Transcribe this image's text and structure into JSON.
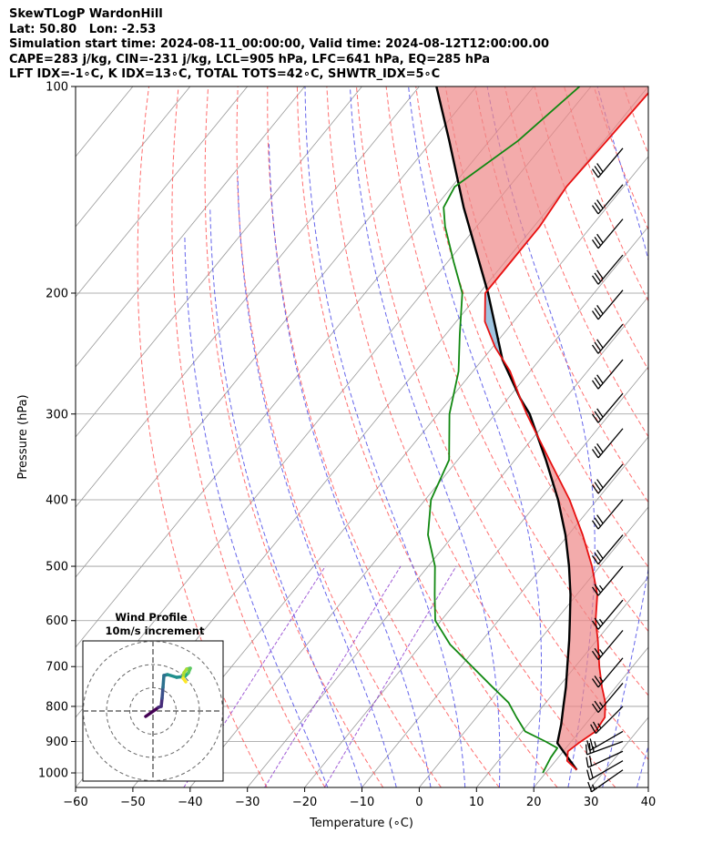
{
  "header": {
    "line1": "SkewTLogP WardonHill",
    "line2": "Lat: 50.80   Lon: -2.53",
    "line3": "Simulation start time: 2024-08-11_00:00:00, Valid time: 2024-08-12T12:00:00.00",
    "line4": "CAPE=283 j/kg, CIN=-231 j/kg, LCL=905 hPa, LFC=641 hPa, EQ=285 hPa",
    "line5": "LFT IDX=-1∘C, K IDX=13∘C, TOTAL TOTS=42∘C, SHWTR_IDX=5∘C"
  },
  "chart_data": {
    "type": "skewt-logp",
    "xlabel": "Temperature (∘C)",
    "ylabel": "Pressure (hPa)",
    "xlim": [
      -60,
      40
    ],
    "ylim": [
      1050,
      100
    ],
    "x_ticks": [
      -60,
      -50,
      -40,
      -30,
      -20,
      -10,
      0,
      10,
      20,
      30,
      40
    ],
    "x_tick_labels": [
      "−60",
      "−50",
      "−40",
      "−30",
      "−20",
      "−10",
      "0",
      "10",
      "20",
      "30",
      "40"
    ],
    "y_ticks": [
      1000,
      900,
      800,
      700,
      600,
      500,
      400,
      300,
      200,
      100
    ],
    "y_tick_labels": [
      "1000",
      "900",
      "800",
      "700",
      "600",
      "500",
      "400",
      "300",
      "200",
      "100"
    ],
    "grid": true,
    "colors": {
      "temperature": "#e81010",
      "dewpoint": "#118811",
      "parcel": "#000000",
      "cape_fill": "#7fb0d6",
      "cin_fill": "#ee8888",
      "dry_adiabat": "#ff5555",
      "moist_adiabat": "#4a4ae8",
      "mixing_ratio": "#8833cc",
      "isotherm": "#999999"
    },
    "temperature_profile": [
      {
        "p": 990,
        "t": 25.0
      },
      {
        "p": 960,
        "t": 22.0
      },
      {
        "p": 930,
        "t": 20.8
      },
      {
        "p": 905,
        "t": 21.5
      },
      {
        "p": 870,
        "t": 22.8
      },
      {
        "p": 830,
        "t": 22.4
      },
      {
        "p": 790,
        "t": 20.4
      },
      {
        "p": 750,
        "t": 17.6
      },
      {
        "p": 700,
        "t": 14.2
      },
      {
        "p": 641,
        "t": 10.2
      },
      {
        "p": 600,
        "t": 7.0
      },
      {
        "p": 550,
        "t": 3.6
      },
      {
        "p": 500,
        "t": -1.4
      },
      {
        "p": 450,
        "t": -7.5
      },
      {
        "p": 400,
        "t": -14.8
      },
      {
        "p": 350,
        "t": -24.0
      },
      {
        "p": 300,
        "t": -34.5
      },
      {
        "p": 285,
        "t": -37.8
      },
      {
        "p": 260,
        "t": -43.5
      },
      {
        "p": 240,
        "t": -49.5
      },
      {
        "p": 220,
        "t": -55.0
      },
      {
        "p": 200,
        "t": -59.0
      },
      {
        "p": 180,
        "t": -59.0
      },
      {
        "p": 160,
        "t": -59.0
      },
      {
        "p": 140,
        "t": -60.0
      },
      {
        "p": 120,
        "t": -59.5
      },
      {
        "p": 100,
        "t": -59.0
      }
    ],
    "dewpoint_profile": [
      {
        "p": 1000,
        "t": 19.5
      },
      {
        "p": 950,
        "t": 18.7
      },
      {
        "p": 920,
        "t": 18.5
      },
      {
        "p": 900,
        "t": 15.5
      },
      {
        "p": 870,
        "t": 10.5
      },
      {
        "p": 830,
        "t": 7.0
      },
      {
        "p": 790,
        "t": 3.5
      },
      {
        "p": 750,
        "t": -1.5
      },
      {
        "p": 700,
        "t": -8.0
      },
      {
        "p": 650,
        "t": -15.0
      },
      {
        "p": 600,
        "t": -21.0
      },
      {
        "p": 550,
        "t": -24.8
      },
      {
        "p": 500,
        "t": -28.8
      },
      {
        "p": 450,
        "t": -34.5
      },
      {
        "p": 400,
        "t": -39.0
      },
      {
        "p": 350,
        "t": -41.5
      },
      {
        "p": 300,
        "t": -48.0
      },
      {
        "p": 260,
        "t": -52.5
      },
      {
        "p": 230,
        "t": -57.5
      },
      {
        "p": 200,
        "t": -63.0
      },
      {
        "p": 180,
        "t": -69.0
      },
      {
        "p": 160,
        "t": -75.5
      },
      {
        "p": 150,
        "t": -78.5
      },
      {
        "p": 140,
        "t": -79.5
      },
      {
        "p": 120,
        "t": -75.0
      },
      {
        "p": 100,
        "t": -72.0
      }
    ],
    "parcel_profile": [
      {
        "p": 990,
        "t": 25.0
      },
      {
        "p": 905,
        "t": 17.8
      },
      {
        "p": 850,
        "t": 15.8
      },
      {
        "p": 800,
        "t": 13.6
      },
      {
        "p": 750,
        "t": 11.3
      },
      {
        "p": 700,
        "t": 8.6
      },
      {
        "p": 641,
        "t": 5.2
      },
      {
        "p": 600,
        "t": 2.5
      },
      {
        "p": 550,
        "t": -1.1
      },
      {
        "p": 500,
        "t": -5.4
      },
      {
        "p": 450,
        "t": -10.5
      },
      {
        "p": 400,
        "t": -16.8
      },
      {
        "p": 350,
        "t": -24.6
      },
      {
        "p": 300,
        "t": -34.0
      },
      {
        "p": 285,
        "t": -37.8
      },
      {
        "p": 250,
        "t": -46.5
      },
      {
        "p": 200,
        "t": -58.5
      },
      {
        "p": 150,
        "t": -75.0
      },
      {
        "p": 120,
        "t": -87.0
      },
      {
        "p": 100,
        "t": -97.0
      }
    ],
    "wind_barbs": [
      {
        "p": 990,
        "spd": 15,
        "dir": 235
      },
      {
        "p": 960,
        "spd": 20,
        "dir": 240
      },
      {
        "p": 930,
        "spd": 20,
        "dir": 245
      },
      {
        "p": 900,
        "spd": 25,
        "dir": 250
      },
      {
        "p": 870,
        "spd": 25,
        "dir": 240
      },
      {
        "p": 800,
        "spd": 25,
        "dir": 225
      },
      {
        "p": 740,
        "spd": 25,
        "dir": 220
      },
      {
        "p": 680,
        "spd": 25,
        "dir": 220
      },
      {
        "p": 620,
        "spd": 25,
        "dir": 220
      },
      {
        "p": 560,
        "spd": 25,
        "dir": 220
      },
      {
        "p": 500,
        "spd": 25,
        "dir": 220
      },
      {
        "p": 450,
        "spd": 30,
        "dir": 220
      },
      {
        "p": 400,
        "spd": 30,
        "dir": 220
      },
      {
        "p": 355,
        "spd": 30,
        "dir": 220
      },
      {
        "p": 315,
        "spd": 30,
        "dir": 220
      },
      {
        "p": 280,
        "spd": 30,
        "dir": 220
      },
      {
        "p": 250,
        "spd": 30,
        "dir": 220
      },
      {
        "p": 222,
        "spd": 30,
        "dir": 220
      },
      {
        "p": 198,
        "spd": 30,
        "dir": 220
      },
      {
        "p": 176,
        "spd": 30,
        "dir": 220
      },
      {
        "p": 156,
        "spd": 30,
        "dir": 220
      },
      {
        "p": 139,
        "spd": 30,
        "dir": 220
      },
      {
        "p": 123,
        "spd": 30,
        "dir": 220
      }
    ]
  },
  "inset": {
    "title_line1": "Wind Profile",
    "title_line2": "10m/s increment",
    "ring_count": 3,
    "hodograph": [
      {
        "u": -0.8,
        "v": -0.6
      },
      {
        "u": 0.2,
        "v": 0.1
      },
      {
        "u": 0.6,
        "v": 0.4
      },
      {
        "u": 0.9,
        "v": 0.5
      },
      {
        "u": 1.0,
        "v": 1.4
      },
      {
        "u": 1.1,
        "v": 2.6
      },
      {
        "u": 1.2,
        "v": 3.9
      },
      {
        "u": 1.6,
        "v": 4.0
      },
      {
        "u": 2.6,
        "v": 3.7
      },
      {
        "u": 3.5,
        "v": 3.8
      },
      {
        "u": 3.9,
        "v": 4.2
      },
      {
        "u": 4.1,
        "v": 4.7
      },
      {
        "u": 3.7,
        "v": 4.6
      },
      {
        "u": 3.4,
        "v": 4.2
      },
      {
        "u": 3.3,
        "v": 3.6
      },
      {
        "u": 3.6,
        "v": 3.2
      }
    ]
  }
}
